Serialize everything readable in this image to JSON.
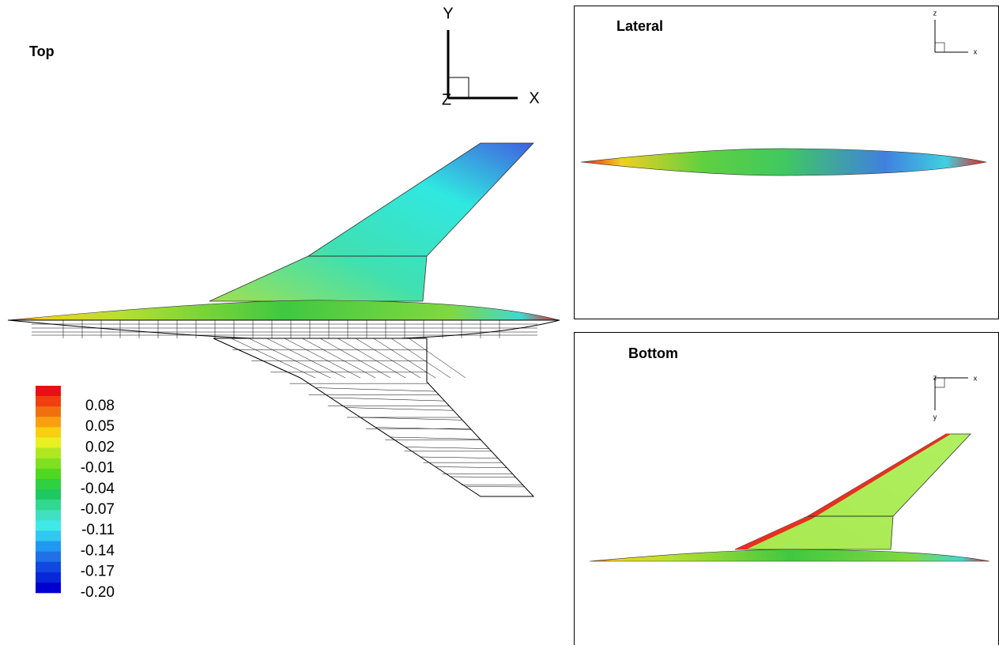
{
  "panels": {
    "top": {
      "title": "Top",
      "axes": {
        "y": "Y",
        "x": "X",
        "z": "Z"
      }
    },
    "lateral": {
      "title": "Lateral",
      "axes": {
        "z": "z",
        "x": "x"
      }
    },
    "bottom": {
      "title": "Bottom",
      "axes": {
        "z": "z",
        "x": "x",
        "y": "y"
      }
    }
  },
  "legend": {
    "levels": [
      "0.08",
      "0.05",
      "0.02",
      "-0.01",
      "-0.04",
      "-0.07",
      "-0.11",
      "-0.14",
      "-0.17",
      "-0.20"
    ]
  }
}
